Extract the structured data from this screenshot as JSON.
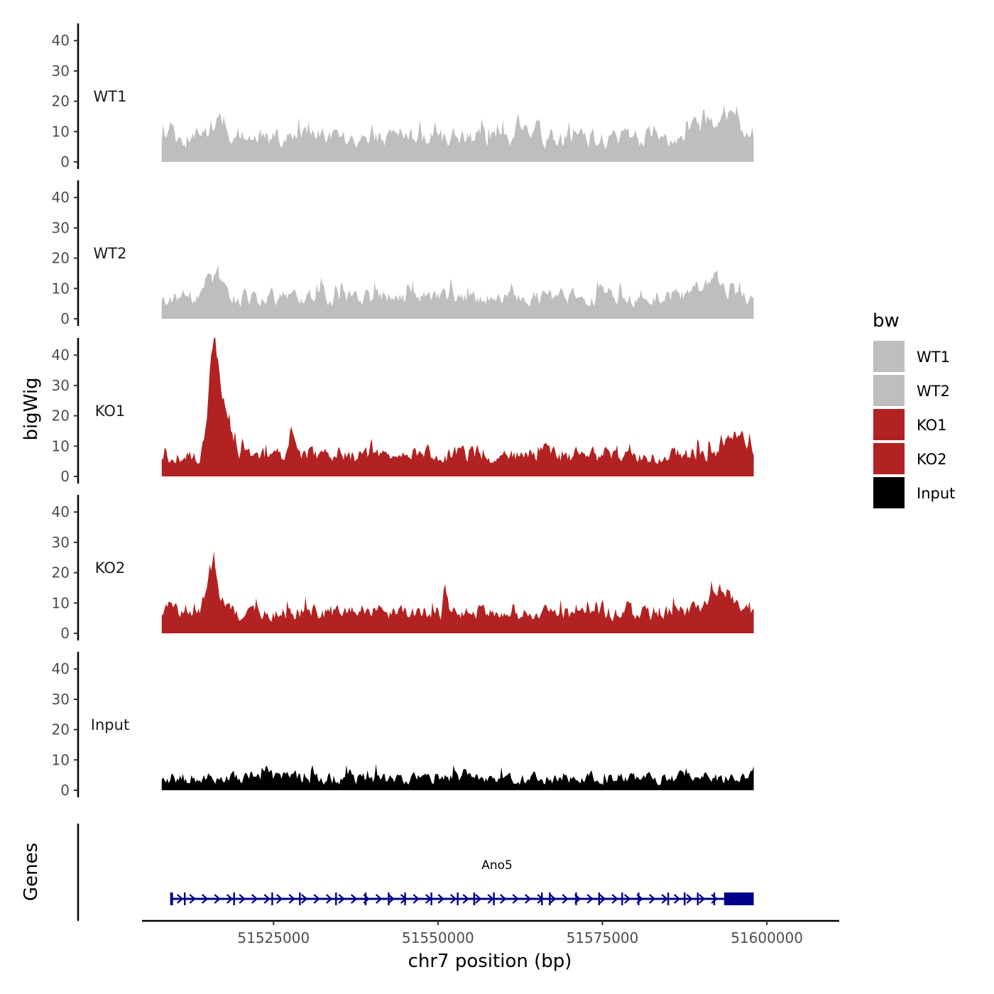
{
  "chart_data": {
    "type": "area",
    "title": "",
    "xlabel": "chr7 position (bp)",
    "ylabel": "bigWig",
    "genes_label": "Genes",
    "x_range": [
      51508000,
      51598000
    ],
    "x_ticks": [
      51525000,
      51550000,
      51575000,
      51600000
    ],
    "x_tick_labels": [
      "51525000",
      "51550000",
      "51575000",
      "51600000"
    ],
    "y_ticks": [
      0,
      10,
      20,
      30,
      40
    ],
    "y_tick_labels": [
      "0",
      "10",
      "20",
      "30",
      "40"
    ],
    "ylim": [
      0,
      46
    ],
    "legend": {
      "title": "bw",
      "position": "right",
      "entries": [
        {
          "label": "WT1",
          "color": "#BEBEBE"
        },
        {
          "label": "WT2",
          "color": "#BEBEBE"
        },
        {
          "label": "KO1",
          "color": "#B22222"
        },
        {
          "label": "KO2",
          "color": "#B22222"
        },
        {
          "label": "Input",
          "color": "#000000"
        }
      ]
    },
    "tracks": [
      {
        "name": "WT1",
        "color": "#BEBEBE",
        "baseline": 8,
        "noise": 6,
        "seed": 11,
        "peaks": [
          [
            51516500,
            6,
            1500
          ],
          [
            51594000,
            7,
            2500
          ],
          [
            51590000,
            4,
            3000
          ]
        ]
      },
      {
        "name": "WT2",
        "color": "#BEBEBE",
        "baseline": 7,
        "noise": 5,
        "seed": 23,
        "peaks": [
          [
            51515500,
            8,
            1500
          ],
          [
            51591500,
            6,
            2500
          ]
        ]
      },
      {
        "name": "KO1",
        "color": "#B22222",
        "baseline": 7,
        "noise": 5,
        "seed": 37,
        "peaks": [
          [
            51515800,
            28,
            900
          ],
          [
            51516800,
            14,
            1800
          ],
          [
            51527500,
            10,
            500
          ],
          [
            51595000,
            7,
            2500
          ]
        ]
      },
      {
        "name": "KO2",
        "color": "#B22222",
        "baseline": 7,
        "noise": 5,
        "seed": 41,
        "peaks": [
          [
            51515500,
            19,
            1100
          ],
          [
            51551000,
            8,
            300
          ],
          [
            51592500,
            8,
            2500
          ]
        ]
      },
      {
        "name": "Input",
        "color": "#000000",
        "baseline": 4,
        "noise": 4,
        "seed": 53,
        "peaks": []
      }
    ],
    "gene": {
      "name": "Ano5",
      "color": "#00008B",
      "start": 51509500,
      "end": 51598000,
      "strand": "+",
      "utr_start": 51593500,
      "exons": [
        51511500,
        51519000,
        51524800,
        51529000,
        51534500,
        51539000,
        51542500,
        51545000,
        51549000,
        51553000,
        51555500,
        51558500,
        51565800,
        51567000,
        51571000,
        51574500,
        51578000,
        51580500,
        51585000,
        51587500,
        51589500,
        51592000
      ]
    }
  }
}
